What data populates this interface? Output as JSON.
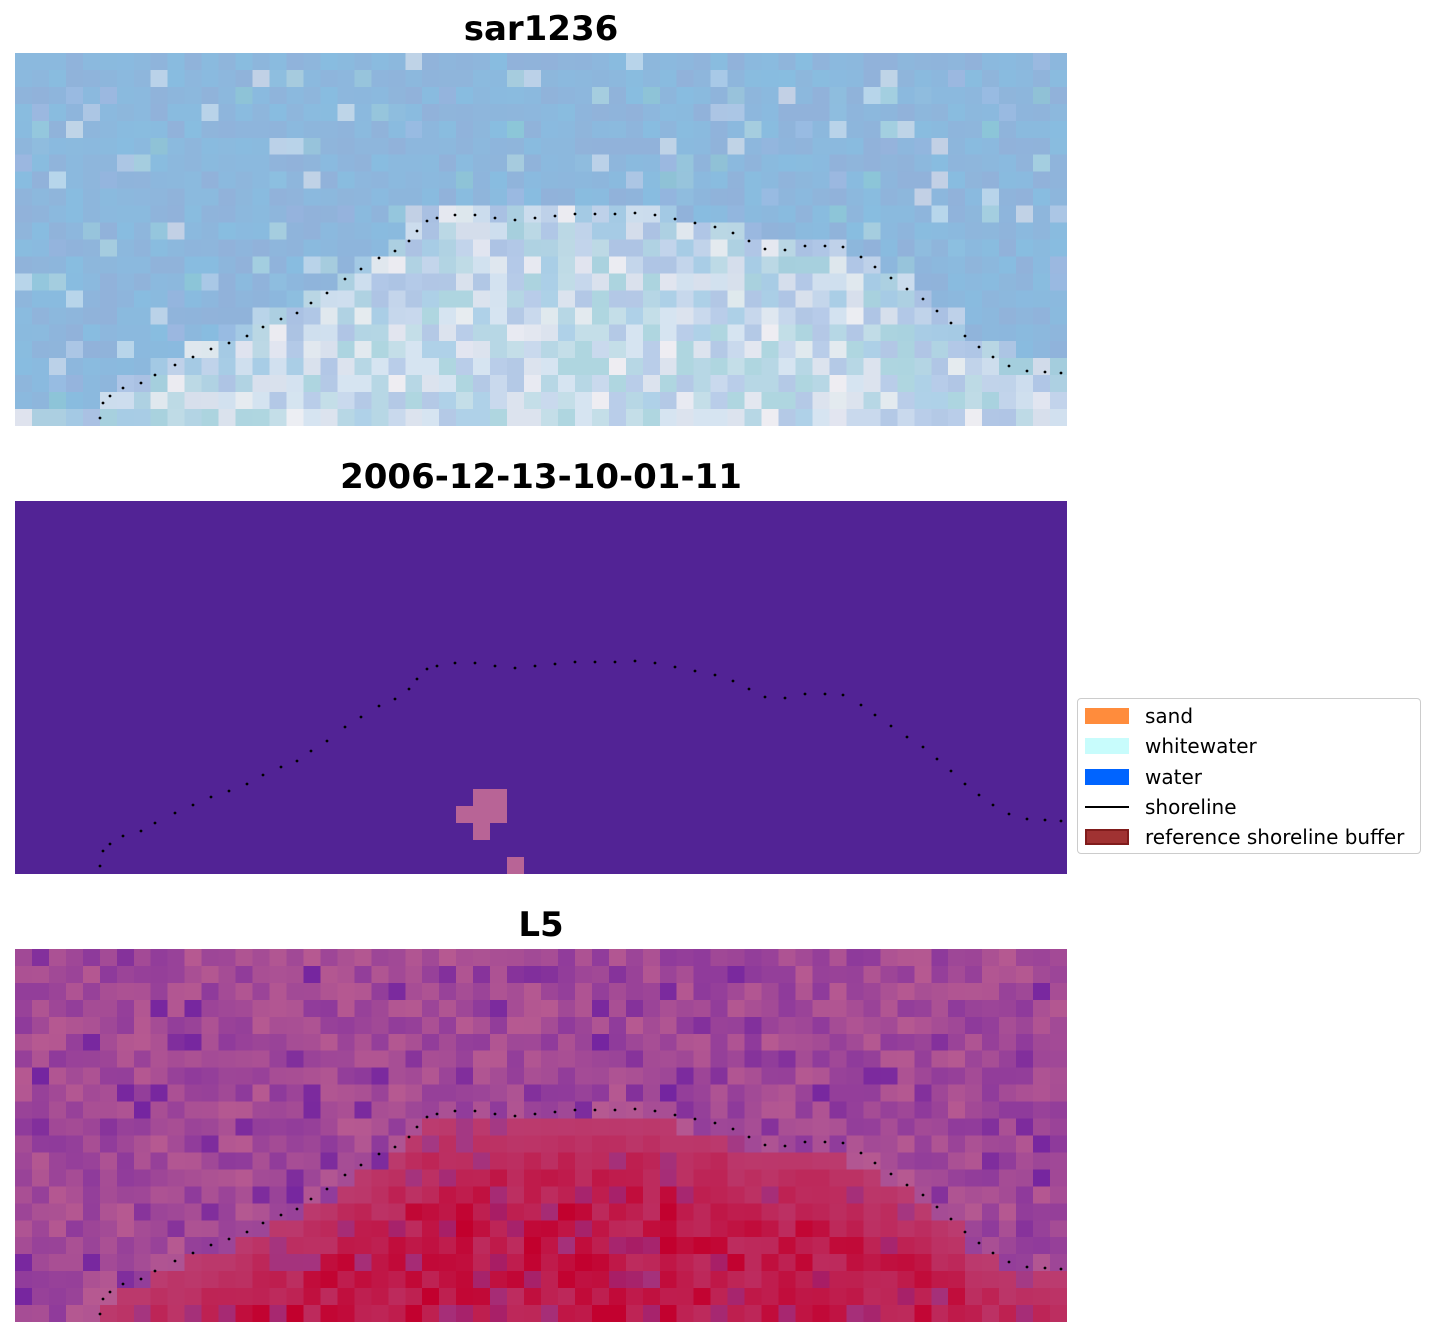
{
  "panels": [
    {
      "title": "sar1236",
      "kind": "rgb",
      "palette": [
        "#9bb3df",
        "#8ec6e2",
        "#a6bde6",
        "#c9d7ee",
        "#e6f0f6",
        "#f4eef0",
        "#bde3e2",
        "#a0d3dc",
        "#8fd0d2"
      ]
    },
    {
      "title": "2006-12-13-10-01-11",
      "kind": "classification",
      "colors": {
        "background": "#522395",
        "class_pixel": "#b86496"
      }
    },
    {
      "title": "L5",
      "kind": "index",
      "colors": {
        "low": "#8e3a9c",
        "mid": "#b75a91",
        "high": "#c10f3e",
        "deep": "#5a0fa5"
      }
    }
  ],
  "legend": {
    "items": [
      {
        "label": "sand",
        "type": "patch",
        "color": "#ff8c3c"
      },
      {
        "label": "whitewater",
        "type": "patch",
        "color": "#c8fcfc"
      },
      {
        "label": "water",
        "type": "patch",
        "color": "#0064ff"
      },
      {
        "label": "shoreline",
        "type": "line",
        "color": "#000000"
      },
      {
        "label": "reference shoreline buffer",
        "type": "patch",
        "color": "#a03232",
        "edge": "#801c1c"
      }
    ]
  }
}
